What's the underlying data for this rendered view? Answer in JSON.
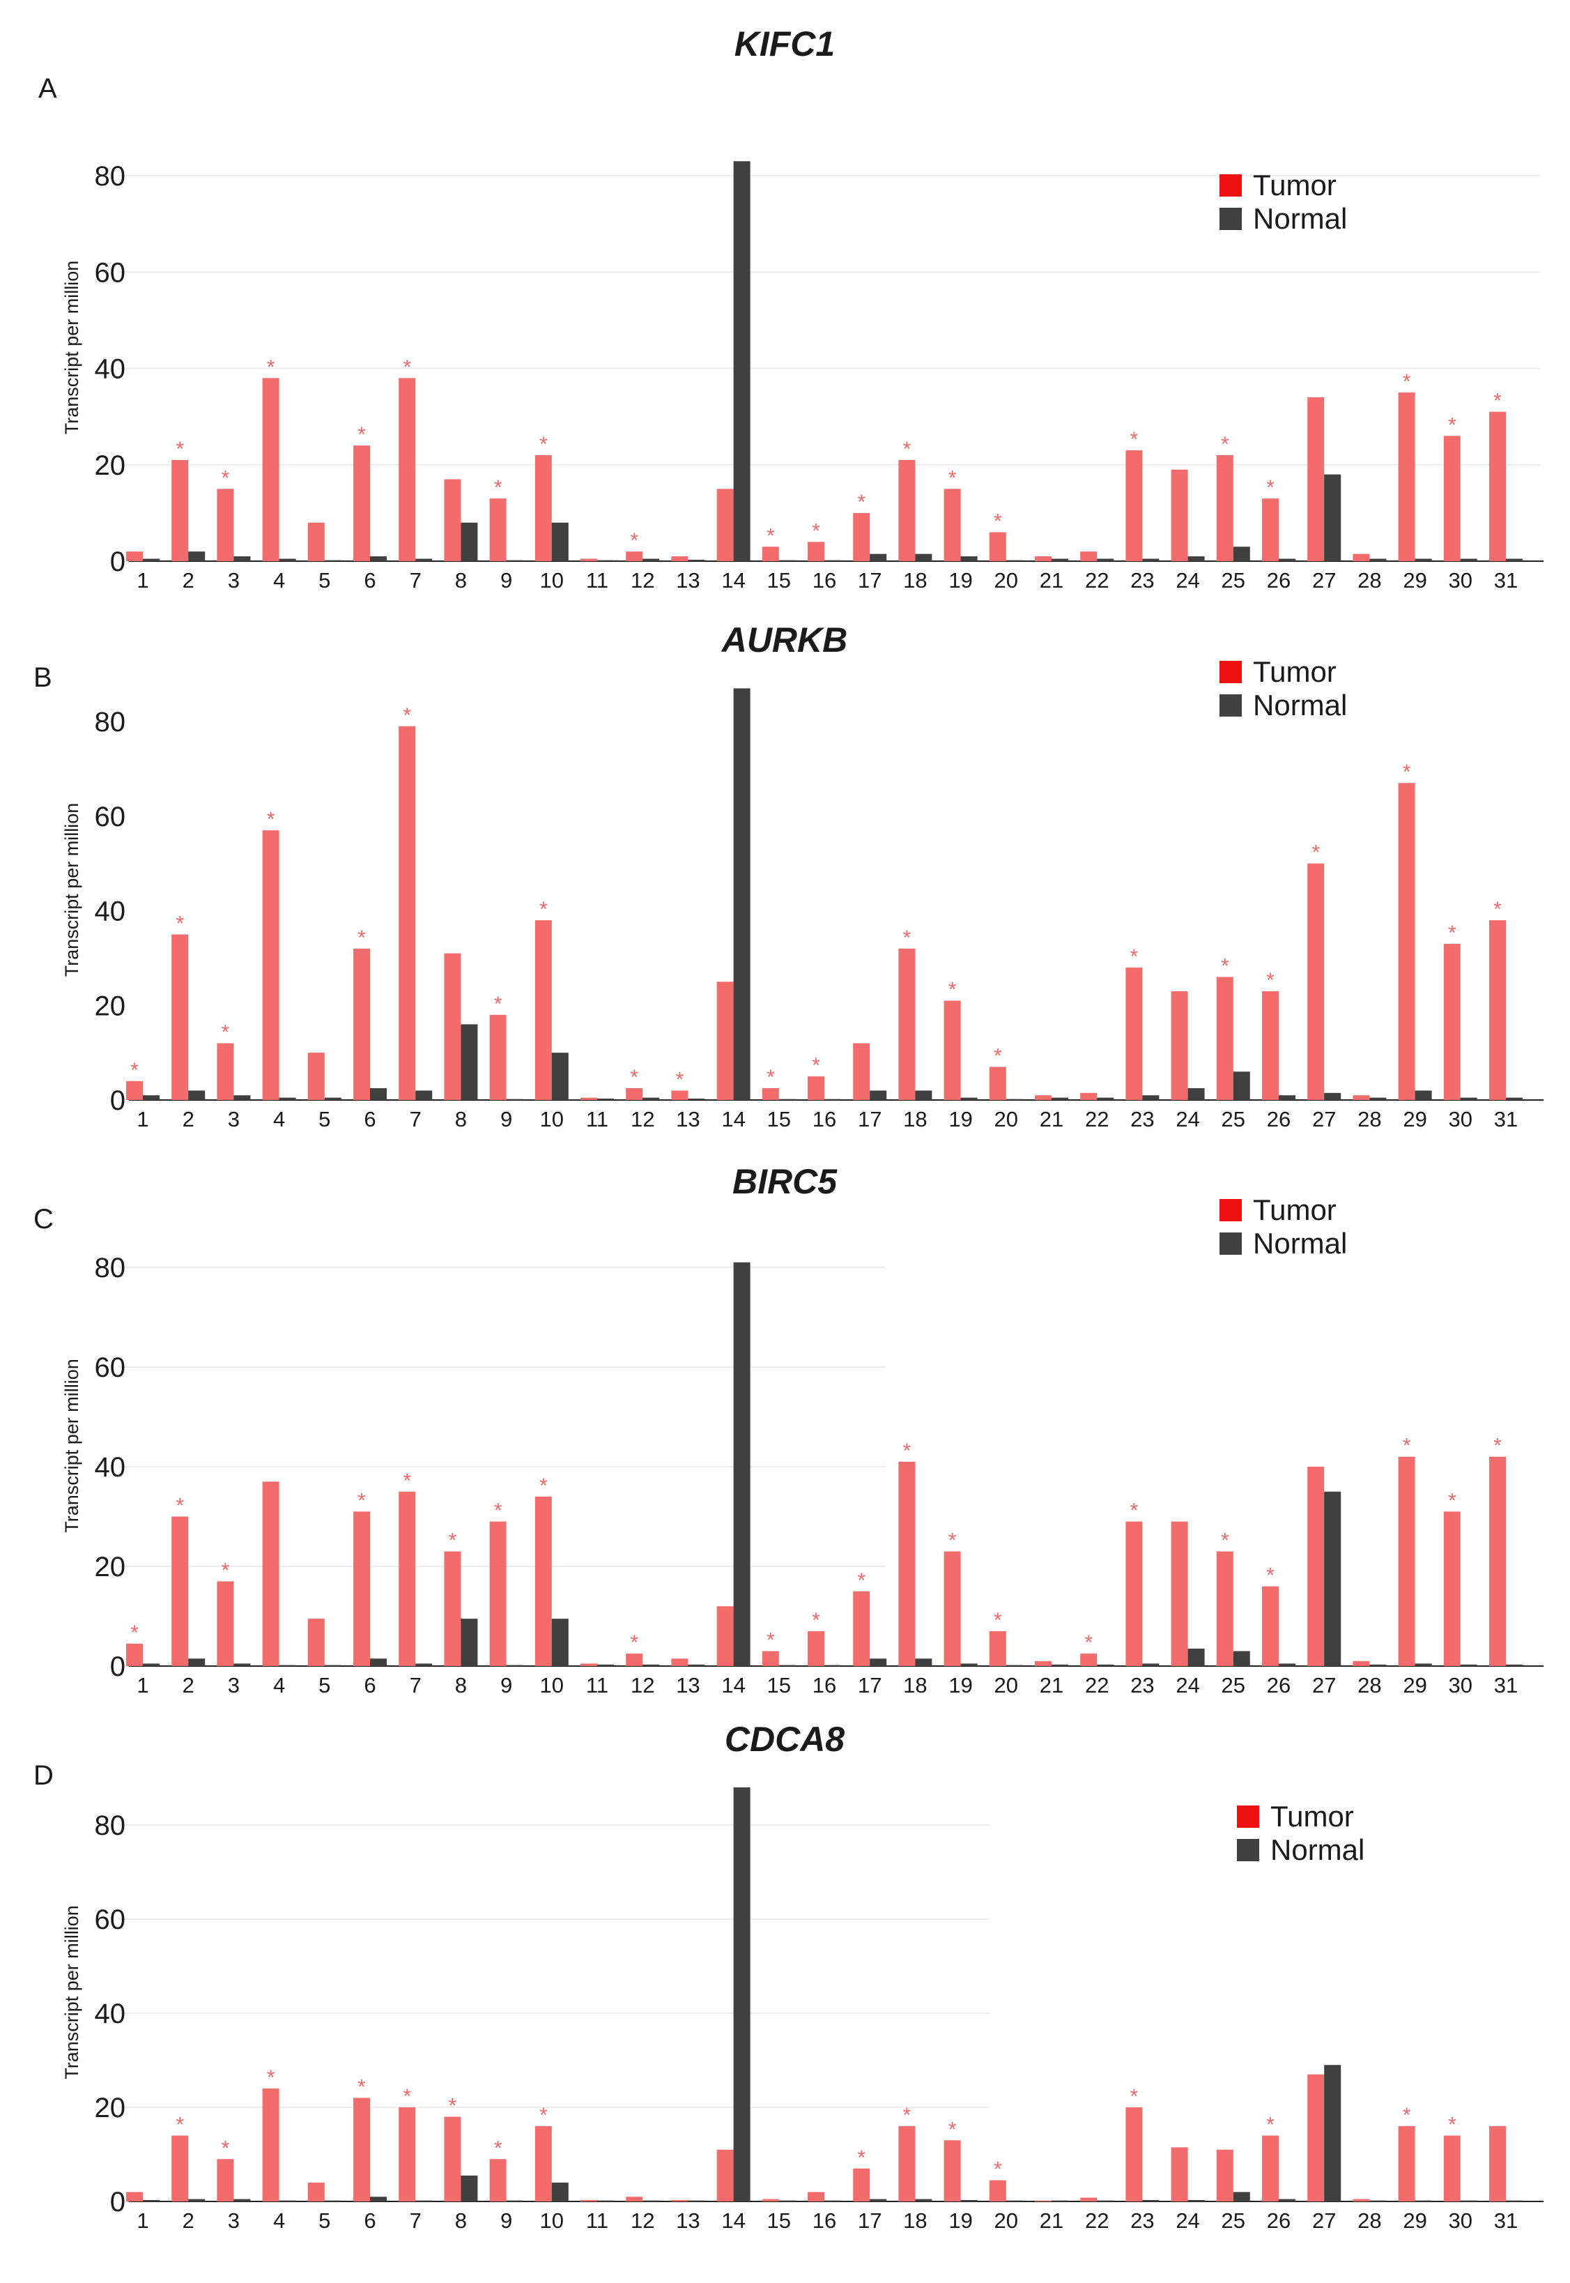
{
  "figure": {
    "colors": {
      "tumor": "#f36b6b",
      "normal": "#404040",
      "tumor_legend": "#ee1111",
      "star": "#ef6a6a",
      "grid": "#ececec",
      "axis": "#222222"
    }
  },
  "chart_data": [
    {
      "type": "bar",
      "panel": "A",
      "title": "KIFC1",
      "ylabel": "Transcript per million",
      "xlabel": "",
      "ylim": [
        0,
        85
      ],
      "yticks": [
        "0",
        "20",
        "40",
        "60",
        "80"
      ],
      "grid": true,
      "legend": {
        "position": "top-right",
        "entries": [
          "Tumor",
          "Normal"
        ]
      },
      "categories": [
        "1",
        "2",
        "3",
        "4",
        "5",
        "6",
        "7",
        "8",
        "9",
        "10",
        "11",
        "12",
        "13",
        "14",
        "15",
        "16",
        "17",
        "18",
        "19",
        "20",
        "21",
        "22",
        "23",
        "24",
        "25",
        "26",
        "27",
        "28",
        "29",
        "30",
        "31"
      ],
      "series": [
        {
          "name": "Tumor",
          "values": [
            2,
            21,
            15,
            38,
            8,
            24,
            38,
            17,
            13,
            22,
            0.5,
            2,
            1,
            15,
            3,
            4,
            10,
            21,
            15,
            6,
            1,
            2,
            23,
            19,
            22,
            13,
            34,
            1.5,
            35,
            26,
            31
          ]
        },
        {
          "name": "Normal",
          "values": [
            0.5,
            2,
            1,
            0.5,
            0.2,
            1,
            0.5,
            8,
            0.2,
            8,
            0.2,
            0.5,
            0.3,
            83,
            0.2,
            0.2,
            1.5,
            1.5,
            1,
            0.2,
            0.5,
            0.5,
            0.5,
            1,
            3,
            0.5,
            18,
            0.5,
            0.5,
            0.5,
            0.5
          ]
        }
      ],
      "significant": [
        2,
        3,
        4,
        6,
        7,
        9,
        10,
        12,
        15,
        16,
        17,
        18,
        19,
        20,
        23,
        25,
        26,
        29,
        30,
        31
      ],
      "significant_marker": "*"
    },
    {
      "type": "bar",
      "panel": "B",
      "title": "AURKB",
      "ylabel": "Transcript per million",
      "xlabel": "",
      "ylim": [
        0,
        87
      ],
      "yticks": [
        "0",
        "20",
        "40",
        "60",
        "80"
      ],
      "grid": false,
      "legend": {
        "position": "top-right",
        "entries": [
          "Tumor",
          "Normal"
        ]
      },
      "categories": [
        "1",
        "2",
        "3",
        "4",
        "5",
        "6",
        "7",
        "8",
        "9",
        "10",
        "11",
        "12",
        "13",
        "14",
        "15",
        "16",
        "17",
        "18",
        "19",
        "20",
        "21",
        "22",
        "23",
        "24",
        "25",
        "26",
        "27",
        "28",
        "29",
        "30",
        "31"
      ],
      "series": [
        {
          "name": "Tumor",
          "values": [
            4,
            35,
            12,
            57,
            10,
            32,
            79,
            31,
            18,
            38,
            0.5,
            2.5,
            2,
            25,
            2.5,
            5,
            12,
            32,
            21,
            7,
            1,
            1.5,
            28,
            23,
            26,
            23,
            50,
            1,
            67,
            33,
            38
          ]
        },
        {
          "name": "Normal",
          "values": [
            1,
            2,
            1,
            0.5,
            0.5,
            2.5,
            2,
            16,
            0.2,
            10,
            0.3,
            0.5,
            0.3,
            87,
            0.2,
            0.2,
            2,
            2,
            0.5,
            0.2,
            0.5,
            0.5,
            1,
            2.5,
            6,
            1,
            1.5,
            0.5,
            2,
            0.5,
            0.5
          ]
        }
      ],
      "significant": [
        1,
        2,
        3,
        4,
        6,
        7,
        9,
        10,
        12,
        13,
        15,
        16,
        18,
        19,
        20,
        23,
        25,
        26,
        27,
        29,
        30,
        31
      ],
      "significant_marker": "*"
    },
    {
      "type": "bar",
      "panel": "C",
      "title": "BIRC5",
      "ylabel": "Transcript per million",
      "xlabel": "",
      "ylim": [
        0,
        82
      ],
      "yticks": [
        "0",
        "20",
        "40",
        "60",
        "80"
      ],
      "grid": true,
      "legend": {
        "position": "top-right",
        "entries": [
          "Tumor",
          "Normal"
        ]
      },
      "categories": [
        "1",
        "2",
        "3",
        "4",
        "5",
        "6",
        "7",
        "8",
        "9",
        "10",
        "11",
        "12",
        "13",
        "14",
        "15",
        "16",
        "17",
        "18",
        "19",
        "20",
        "21",
        "22",
        "23",
        "24",
        "25",
        "26",
        "27",
        "28",
        "29",
        "30",
        "31"
      ],
      "series": [
        {
          "name": "Tumor",
          "values": [
            4.5,
            30,
            17,
            37,
            9.5,
            31,
            35,
            23,
            29,
            34,
            0.5,
            2.5,
            1.5,
            12,
            3,
            7,
            15,
            41,
            23,
            7,
            1,
            2.5,
            29,
            29,
            23,
            16,
            40,
            1,
            42,
            31,
            42
          ]
        },
        {
          "name": "Normal",
          "values": [
            0.5,
            1.5,
            0.5,
            0.2,
            0.2,
            1.5,
            0.5,
            9.5,
            0.2,
            9.5,
            0.3,
            0.3,
            0.3,
            81,
            0.2,
            0.2,
            1.5,
            1.5,
            0.5,
            0.2,
            0.3,
            0.3,
            0.5,
            3.5,
            3,
            0.5,
            35,
            0.3,
            0.5,
            0.3,
            0.3
          ]
        }
      ],
      "significant": [
        1,
        2,
        3,
        6,
        7,
        8,
        9,
        10,
        12,
        15,
        16,
        17,
        18,
        19,
        20,
        22,
        23,
        25,
        26,
        29,
        30,
        31
      ],
      "significant_marker": "*"
    },
    {
      "type": "bar",
      "panel": "D",
      "title": "CDCA8",
      "ylabel": "Transcript per million",
      "xlabel": "",
      "ylim": [
        0,
        89
      ],
      "yticks": [
        "0",
        "20",
        "40",
        "60",
        "80"
      ],
      "grid": true,
      "legend": {
        "position": "top-right",
        "entries": [
          "Tumor",
          "Normal"
        ]
      },
      "categories": [
        "1",
        "2",
        "3",
        "4",
        "5",
        "6",
        "7",
        "8",
        "9",
        "10",
        "11",
        "12",
        "13",
        "14",
        "15",
        "16",
        "17",
        "18",
        "19",
        "20",
        "21",
        "22",
        "23",
        "24",
        "25",
        "26",
        "27",
        "28",
        "29",
        "30",
        "31"
      ],
      "series": [
        {
          "name": "Tumor",
          "values": [
            2,
            14,
            9,
            24,
            4,
            22,
            20,
            18,
            9,
            16,
            0.3,
            1,
            0.3,
            11,
            0.5,
            2,
            7,
            16,
            13,
            4.5,
            0.2,
            0.8,
            20,
            11.5,
            11,
            14,
            27,
            0.5,
            16,
            14,
            16
          ]
        },
        {
          "name": "Normal",
          "values": [
            0.3,
            0.5,
            0.5,
            0.2,
            0.2,
            1,
            0.2,
            5.5,
            0.2,
            4,
            0.2,
            0.2,
            0.2,
            88,
            0.2,
            0.2,
            0.5,
            0.5,
            0.3,
            0.2,
            0.2,
            0.2,
            0.3,
            0.3,
            2,
            0.5,
            29,
            0.2,
            0.2,
            0.2,
            0.2
          ]
        }
      ],
      "significant": [
        2,
        3,
        4,
        6,
        7,
        8,
        9,
        10,
        17,
        18,
        19,
        20,
        23,
        26,
        29,
        30
      ],
      "significant_marker": "*"
    }
  ]
}
